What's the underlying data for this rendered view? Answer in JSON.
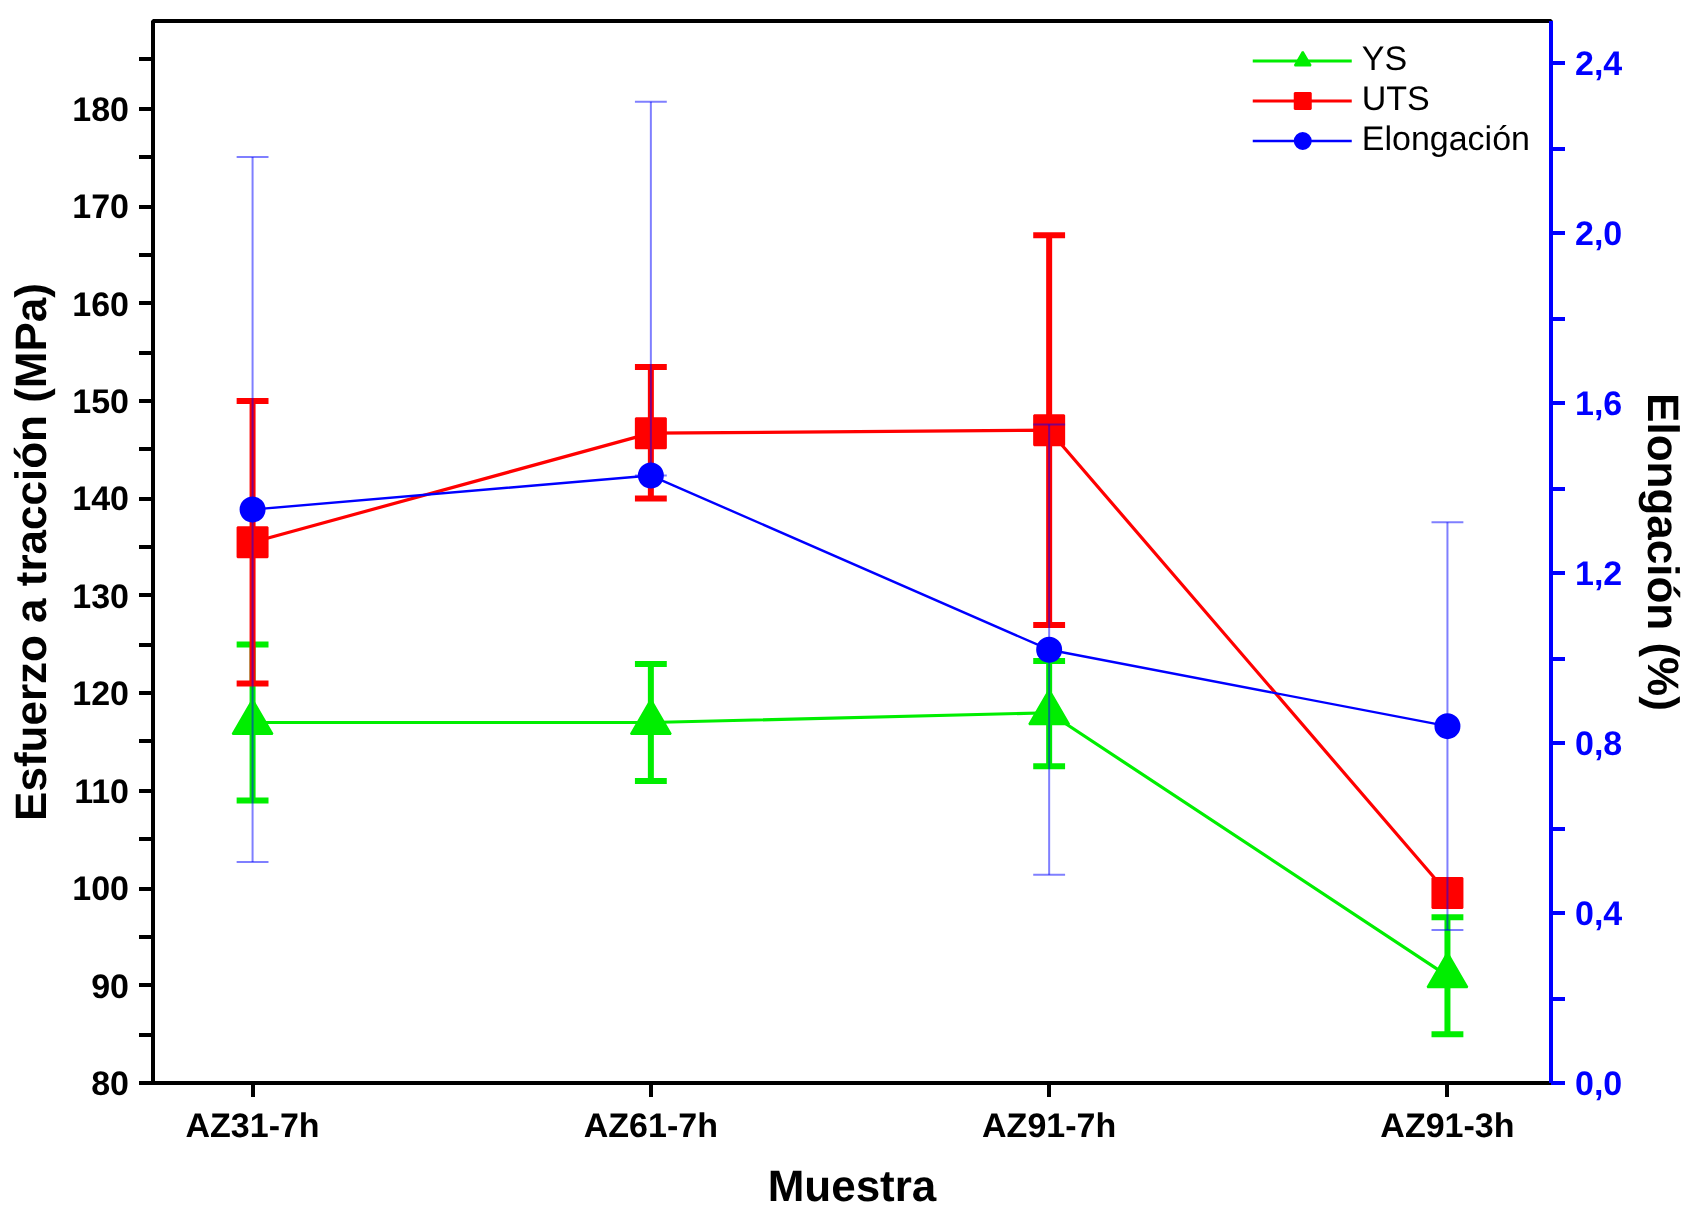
{
  "chart_data": {
    "type": "line",
    "xlabel": "Muestra",
    "ylabel": "Esfuerzo a tracción (MPa)",
    "y2label": "Elongación (%)",
    "categories": [
      "AZ31-7h",
      "AZ61-7h",
      "AZ91-7h",
      "AZ91-3h"
    ],
    "series": [
      {
        "name": "YS",
        "color": "#00ee00",
        "marker": "triangle",
        "values": [
          117,
          117,
          118,
          91
        ],
        "errors": [
          [
            109,
            125
          ],
          [
            111,
            123
          ],
          [
            112.5,
            123.3
          ],
          [
            85,
            97
          ]
        ]
      },
      {
        "name": "UTS",
        "color": "#ff0000",
        "marker": "square",
        "values": [
          135.5,
          146.7,
          147,
          99.5
        ],
        "errors": [
          [
            121,
            150
          ],
          [
            140,
            153.5
          ],
          [
            127,
            167
          ],
          null
        ]
      },
      {
        "name": "Elongación",
        "color": "#0000ff",
        "marker": "circle",
        "axis": "y2",
        "values": [
          1.35,
          1.43,
          1.02,
          0.84
        ],
        "errors": [
          [
            0.52,
            2.18
          ],
          [
            1.43,
            2.31
          ],
          [
            0.49,
            1.55
          ],
          [
            0.36,
            1.32
          ]
        ]
      }
    ],
    "ylim": [
      80,
      189
    ],
    "yticks": [
      80,
      {
        "value": 85,
        "label": null
      },
      90,
      {
        "value": 95,
        "label": null
      },
      100,
      {
        "value": 105,
        "label": null
      },
      110,
      {
        "value": 115,
        "label": null
      },
      120,
      {
        "value": 125,
        "label": null
      },
      130,
      {
        "value": 135,
        "label": null
      },
      140,
      {
        "value": 145,
        "label": null
      },
      150,
      {
        "value": 155,
        "label": null
      },
      160,
      {
        "value": 165,
        "label": null
      },
      170,
      {
        "value": 175,
        "label": null
      },
      180,
      {
        "value": 185,
        "label": null
      }
    ],
    "y2lim": [
      0,
      2.5
    ],
    "y2ticks": [
      {
        "value": 0,
        "label": "0,0"
      },
      {
        "value": 0.2,
        "label": null
      },
      {
        "value": 0.4,
        "label": "0,4"
      },
      {
        "value": 0.6,
        "label": null
      },
      {
        "value": 0.8,
        "label": "0,8"
      },
      {
        "value": 1.0,
        "label": null
      },
      {
        "value": 1.2,
        "label": "1,2"
      },
      {
        "value": 1.4,
        "label": null
      },
      {
        "value": 1.6,
        "label": "1,6"
      },
      {
        "value": 1.8,
        "label": null
      },
      {
        "value": 2.0,
        "label": "2,0"
      },
      {
        "value": 2.2,
        "label": null
      },
      {
        "value": 2.4,
        "label": "2,4"
      }
    ],
    "grid": false,
    "legend": "top right"
  }
}
